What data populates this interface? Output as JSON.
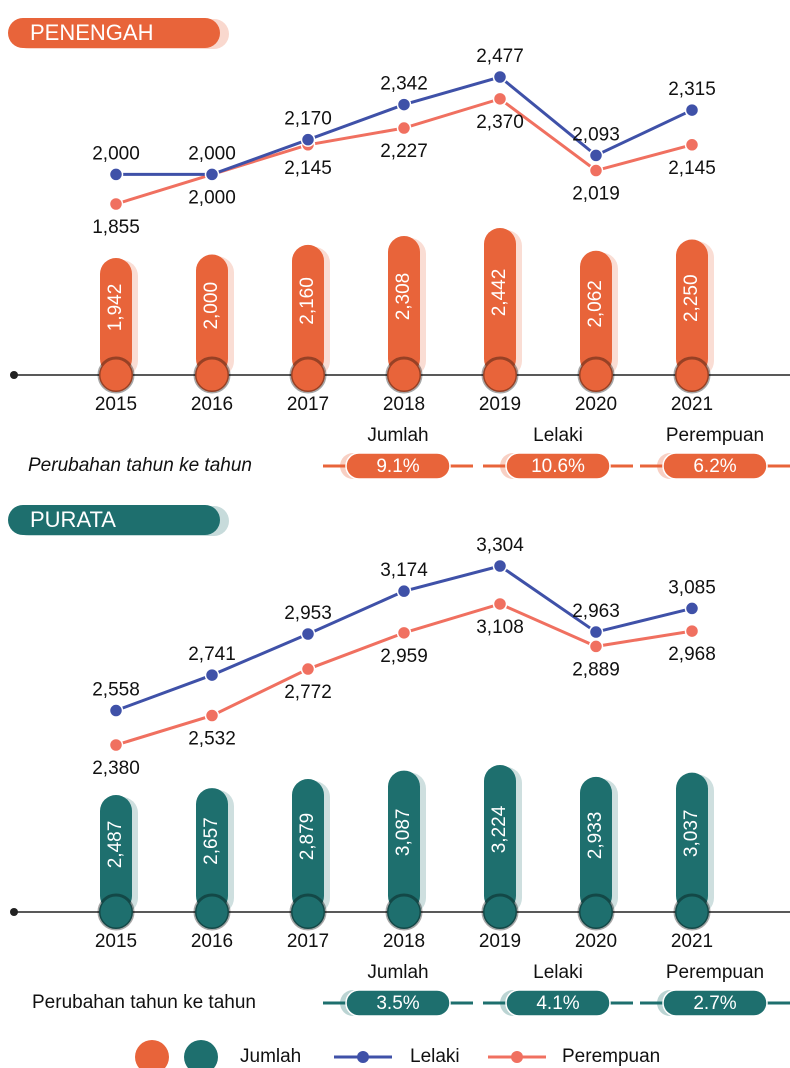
{
  "chart_data": [
    {
      "type": "bar_line",
      "title": "PENENGAH",
      "categories": [
        "2015",
        "2016",
        "2017",
        "2018",
        "2019",
        "2020",
        "2021"
      ],
      "series": [
        {
          "name": "Jumlah",
          "color": "#e8643a",
          "values": [
            1942,
            2000,
            2160,
            2308,
            2442,
            2062,
            2250
          ],
          "value_labels": [
            "1,942",
            "2,000",
            "2,160",
            "2,308",
            "2,442",
            "2,062",
            "2,250"
          ]
        },
        {
          "name": "Lelaki",
          "color": "#3f51a8",
          "values": [
            2000,
            2000,
            2170,
            2342,
            2477,
            2093,
            2315
          ],
          "value_labels": [
            "2,000",
            "2,000",
            "2,170",
            "2,342",
            "2,477",
            "2,093",
            "2,315"
          ]
        },
        {
          "name": "Perempuan",
          "color": "#f07060",
          "values": [
            1855,
            2000,
            2145,
            2227,
            2370,
            2019,
            2145
          ],
          "value_labels": [
            "1,855",
            "2,000",
            "2,145",
            "2,227",
            "2,370",
            "2,019",
            "2,145"
          ]
        }
      ],
      "changes": {
        "label": "Perubahan tahun ke tahun",
        "names": [
          "Jumlah",
          "Lelaki",
          "Perempuan"
        ],
        "values": [
          9.1,
          10.6,
          6.2
        ],
        "value_labels": [
          "9.1%",
          "10.6%",
          "6.2%"
        ]
      }
    },
    {
      "type": "bar_line",
      "title": "PURATA",
      "categories": [
        "2015",
        "2016",
        "2017",
        "2018",
        "2019",
        "2020",
        "2021"
      ],
      "series": [
        {
          "name": "Jumlah",
          "color": "#1e6f6e",
          "values": [
            2487,
            2657,
            2879,
            3087,
            3224,
            2933,
            3037
          ],
          "value_labels": [
            "2,487",
            "2,657",
            "2,879",
            "3,087",
            "3,224",
            "2,933",
            "3,037"
          ]
        },
        {
          "name": "Lelaki",
          "color": "#3f51a8",
          "values": [
            2558,
            2741,
            2953,
            3174,
            3304,
            2963,
            3085
          ],
          "value_labels": [
            "2,558",
            "2,741",
            "2,953",
            "3,174",
            "3,304",
            "2,963",
            "3,085"
          ]
        },
        {
          "name": "Perempuan",
          "color": "#f07060",
          "values": [
            2380,
            2532,
            2772,
            2959,
            3108,
            2889,
            2968
          ],
          "value_labels": [
            "2,380",
            "2,532",
            "2,772",
            "2,959",
            "3,108",
            "2,889",
            "2,968"
          ]
        }
      ],
      "changes": {
        "label": "Perubahan tahun ke tahun",
        "names": [
          "Jumlah",
          "Lelaki",
          "Perempuan"
        ],
        "values": [
          3.5,
          4.1,
          2.7
        ],
        "value_labels": [
          "3.5%",
          "4.1%",
          "2.7%"
        ]
      }
    }
  ]
}
